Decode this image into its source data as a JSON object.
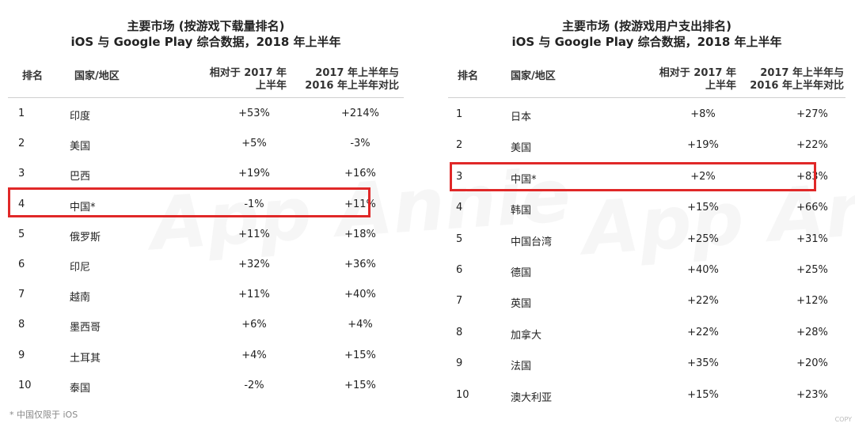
{
  "chart_data": [
    {
      "type": "table",
      "title": "主要市场 (按游戏下载量排名)",
      "subtitle": "iOS 与 Google Play 综合数据，2018 年上半年",
      "columns": [
        "排名",
        "国家/地区",
        "相对于 2017 年上半年",
        "2017 年上半年与 2016 年上半年对比"
      ],
      "column_lines": {
        "v1": [
          "相对于 2017 年",
          "上半年"
        ],
        "v2": [
          "2017 年上半年与",
          "2016 年上半年对比"
        ]
      },
      "rows": [
        {
          "rank": "1",
          "country": "印度",
          "v1": "+53%",
          "v2": "+214%"
        },
        {
          "rank": "2",
          "country": "美国",
          "v1": "+5%",
          "v2": "-3%"
        },
        {
          "rank": "3",
          "country": "巴西",
          "v1": "+19%",
          "v2": "+16%"
        },
        {
          "rank": "4",
          "country": "中国*",
          "v1": "-1%",
          "v2": "+11%"
        },
        {
          "rank": "5",
          "country": "俄罗斯",
          "v1": "+11%",
          "v2": "+18%"
        },
        {
          "rank": "6",
          "country": "印尼",
          "v1": "+32%",
          "v2": "+36%"
        },
        {
          "rank": "7",
          "country": "越南",
          "v1": "+11%",
          "v2": "+40%"
        },
        {
          "rank": "8",
          "country": "墨西哥",
          "v1": "+6%",
          "v2": "+4%"
        },
        {
          "rank": "9",
          "country": "土耳其",
          "v1": "+4%",
          "v2": "+15%"
        },
        {
          "rank": "10",
          "country": "泰国",
          "v1": "-2%",
          "v2": "+15%"
        }
      ],
      "highlight_rank": "4",
      "highlight_color": "#e02828"
    },
    {
      "type": "table",
      "title": "主要市场 (按游戏用户支出排名)",
      "subtitle": "iOS 与 Google Play 综合数据，2018 年上半年",
      "columns": [
        "排名",
        "国家/地区",
        "相对于 2017 年上半年",
        "2017 年上半年与 2016 年上半年对比"
      ],
      "column_lines": {
        "v1": [
          "相对于 2017 年",
          "上半年"
        ],
        "v2": [
          "2017 年上半年与",
          "2016 年上半年对比"
        ]
      },
      "rows": [
        {
          "rank": "1",
          "country": "日本",
          "v1": "+8%",
          "v2": "+27%"
        },
        {
          "rank": "2",
          "country": "美国",
          "v1": "+19%",
          "v2": "+22%"
        },
        {
          "rank": "3",
          "country": "中国*",
          "v1": "+2%",
          "v2": "+83%"
        },
        {
          "rank": "4",
          "country": "韩国",
          "v1": "+15%",
          "v2": "+66%"
        },
        {
          "rank": "5",
          "country": "中国台湾",
          "v1": "+25%",
          "v2": "+31%"
        },
        {
          "rank": "6",
          "country": "德国",
          "v1": "+40%",
          "v2": "+25%"
        },
        {
          "rank": "7",
          "country": "英国",
          "v1": "+22%",
          "v2": "+12%"
        },
        {
          "rank": "8",
          "country": "加拿大",
          "v1": "+22%",
          "v2": "+28%"
        },
        {
          "rank": "9",
          "country": "法国",
          "v1": "+35%",
          "v2": "+20%"
        },
        {
          "rank": "10",
          "country": "澳大利亚",
          "v1": "+15%",
          "v2": "+23%"
        }
      ],
      "highlight_rank": "3",
      "highlight_color": "#e02828"
    }
  ],
  "watermark": "App Annie",
  "footnote": "* 中国仅限于 iOS",
  "copyright": "COPY",
  "colors": {
    "highlight": "#e02828",
    "rule": "#cfcfcf",
    "text": "#222222"
  }
}
